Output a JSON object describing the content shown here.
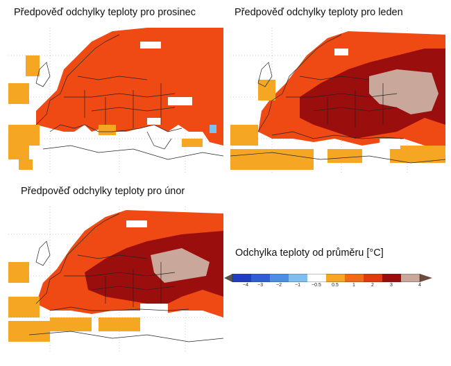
{
  "maps": [
    {
      "title": "Předpověď odchylky teploty pro prosinec"
    },
    {
      "title": "Předpověď odchylky teploty pro leden"
    },
    {
      "title": "Předpověď odchylky teploty pro únor"
    }
  ],
  "legend": {
    "title": "Odchylka teploty od průměru [°C]",
    "ticks": [
      "−4",
      "−3",
      "−2",
      "−1",
      "−0.5",
      "0.5",
      "1",
      "2",
      "3",
      "4"
    ],
    "colors": [
      "#222222",
      "#1f3fbf",
      "#2f5fd0",
      "#4a8fe0",
      "#7fbfef",
      "#ffffff",
      "#f5a623",
      "#f06a1a",
      "#e03a10",
      "#9b0e0e",
      "#c9a79a",
      "#6b4a3f"
    ]
  }
}
